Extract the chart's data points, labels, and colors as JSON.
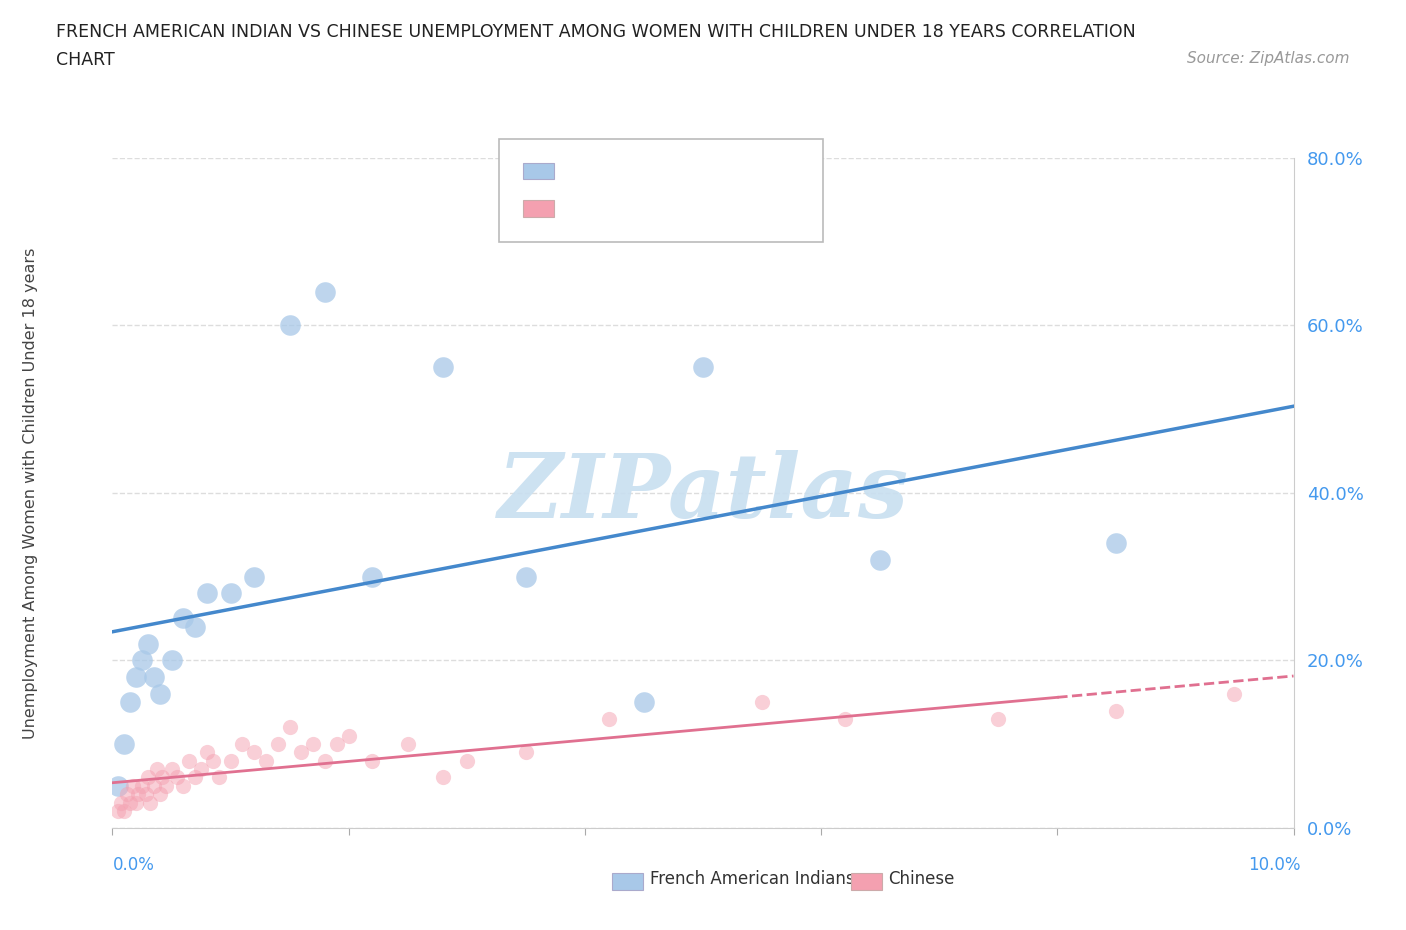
{
  "title_line1": "FRENCH AMERICAN INDIAN VS CHINESE UNEMPLOYMENT AMONG WOMEN WITH CHILDREN UNDER 18 YEARS CORRELATION",
  "title_line2": "CHART",
  "source": "Source: ZipAtlas.com",
  "ylabel": "Unemployment Among Women with Children Under 18 years",
  "xlim": [
    0.0,
    10.0
  ],
  "ylim": [
    0.0,
    80.0
  ],
  "yticks": [
    0,
    20,
    40,
    60,
    80
  ],
  "color_blue": "#a8c8e8",
  "color_pink": "#f4a0b0",
  "color_blue_line": "#4488cc",
  "color_pink_line": "#e07090",
  "background_color": "#ffffff",
  "grid_color": "#dddddd",
  "french_x": [
    0.05,
    0.1,
    0.15,
    0.2,
    0.25,
    0.3,
    0.35,
    0.4,
    0.5,
    0.6,
    0.7,
    0.8,
    1.0,
    1.2,
    1.5,
    1.8,
    2.2,
    2.8,
    3.5,
    4.5,
    5.0,
    6.5,
    8.5
  ],
  "french_y": [
    5,
    10,
    15,
    18,
    20,
    22,
    18,
    16,
    20,
    25,
    24,
    28,
    28,
    30,
    60,
    64,
    30,
    55,
    30,
    15,
    55,
    32,
    34
  ],
  "chinese_x": [
    0.05,
    0.07,
    0.1,
    0.12,
    0.15,
    0.17,
    0.2,
    0.22,
    0.25,
    0.28,
    0.3,
    0.32,
    0.35,
    0.38,
    0.4,
    0.42,
    0.45,
    0.5,
    0.55,
    0.6,
    0.65,
    0.7,
    0.75,
    0.8,
    0.85,
    0.9,
    1.0,
    1.1,
    1.2,
    1.3,
    1.4,
    1.5,
    1.6,
    1.7,
    1.8,
    1.9,
    2.0,
    2.2,
    2.5,
    2.8,
    3.0,
    3.5,
    4.2,
    5.5,
    6.2,
    7.5,
    8.5,
    9.5
  ],
  "chinese_y": [
    2,
    3,
    2,
    4,
    3,
    5,
    3,
    4,
    5,
    4,
    6,
    3,
    5,
    7,
    4,
    6,
    5,
    7,
    6,
    5,
    8,
    6,
    7,
    9,
    8,
    6,
    8,
    10,
    9,
    8,
    10,
    12,
    9,
    10,
    8,
    10,
    11,
    8,
    10,
    6,
    8,
    9,
    13,
    15,
    13,
    13,
    14,
    16
  ],
  "watermark": "ZIPatlas",
  "watermark_color": "#c8dff0",
  "legend_label1": "French American Indians",
  "legend_label2": "Chinese"
}
